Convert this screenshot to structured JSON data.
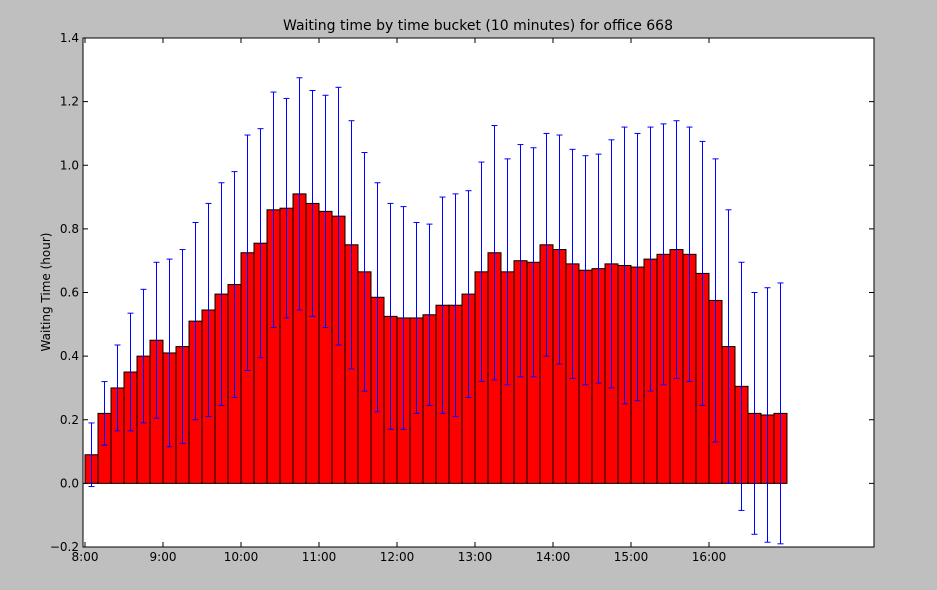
{
  "chart_data": {
    "type": "bar",
    "title": "Waiting time by time bucket (10 minutes) for office 668",
    "xlabel": "",
    "ylabel": "Waiting Time (hour)",
    "ylim": [
      -0.2,
      1.4
    ],
    "yticks": [
      "−0.2",
      "0.0",
      "0.2",
      "0.4",
      "0.6",
      "0.8",
      "1.0",
      "1.2",
      "1.4"
    ],
    "xticks": [
      "8:00",
      "9:00",
      "10:00",
      "11:00",
      "12:00",
      "13:00",
      "14:00",
      "15:00",
      "16:00"
    ],
    "x_start": "8:00",
    "bucket_minutes": 10,
    "grid": false,
    "bar_color": "#ff0000",
    "errorbar_color": "#0000ff",
    "values": [
      0.09,
      0.22,
      0.3,
      0.35,
      0.4,
      0.45,
      0.41,
      0.43,
      0.51,
      0.545,
      0.595,
      0.625,
      0.725,
      0.755,
      0.86,
      0.865,
      0.91,
      0.88,
      0.855,
      0.84,
      0.75,
      0.665,
      0.585,
      0.525,
      0.52,
      0.52,
      0.53,
      0.56,
      0.56,
      0.595,
      0.665,
      0.725,
      0.665,
      0.7,
      0.695,
      0.75,
      0.735,
      0.69,
      0.67,
      0.675,
      0.69,
      0.685,
      0.68,
      0.705,
      0.72,
      0.735,
      0.72,
      0.66,
      0.575,
      0.43,
      0.305,
      0.22,
      0.215,
      0.22
    ],
    "errors": [
      0.1,
      0.1,
      0.135,
      0.185,
      0.21,
      0.245,
      0.295,
      0.305,
      0.31,
      0.335,
      0.35,
      0.355,
      0.37,
      0.36,
      0.37,
      0.345,
      0.365,
      0.355,
      0.365,
      0.405,
      0.39,
      0.375,
      0.36,
      0.355,
      0.35,
      0.3,
      0.285,
      0.34,
      0.35,
      0.325,
      0.345,
      0.4,
      0.355,
      0.365,
      0.36,
      0.35,
      0.36,
      0.36,
      0.36,
      0.36,
      0.39,
      0.435,
      0.42,
      0.415,
      0.41,
      0.405,
      0.4,
      0.415,
      0.445,
      0.43,
      0.39,
      0.38,
      0.4,
      0.41
    ]
  }
}
